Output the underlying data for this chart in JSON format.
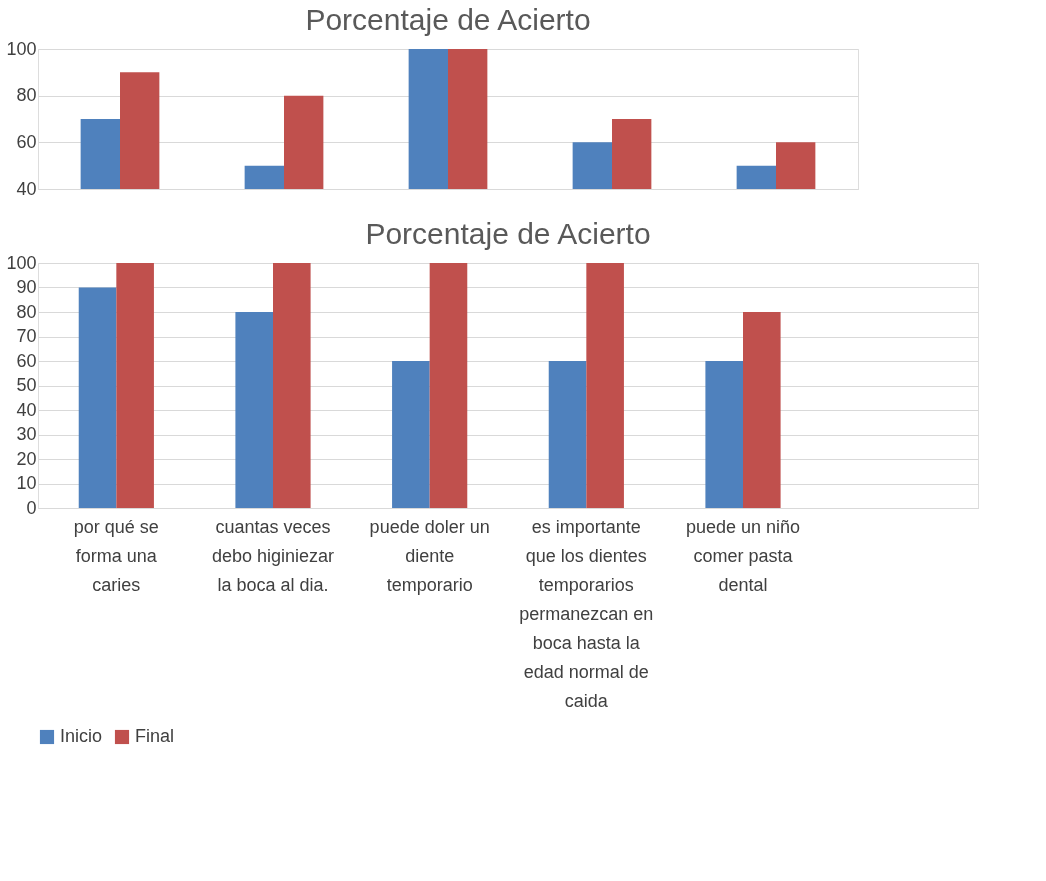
{
  "chart_data": [
    {
      "type": "bar",
      "title": "Porcentaje de Acierto",
      "categories": [
        null,
        null,
        null,
        null,
        null
      ],
      "series": [
        {
          "color": "#4f81bd",
          "values": [
            70,
            50,
            100,
            60,
            50
          ]
        },
        {
          "color": "#c0504d",
          "values": [
            90,
            80,
            100,
            70,
            60
          ]
        }
      ],
      "ylim": [
        40,
        100
      ],
      "yticks": [
        40,
        60,
        80,
        100
      ],
      "grid": "y",
      "tick_labels": "y"
    },
    {
      "type": "bar",
      "title": "Porcentaje de Acierto",
      "categories": [
        "por qué se forma una caries",
        "cuantas veces debo higiniezar la boca al dia.",
        "puede doler un diente temporario",
        "es importante que los dientes temporarios permanezcan en boca hasta la edad normal de caida",
        "puede un niño comer pasta dental"
      ],
      "series": [
        {
          "name": "Inicio",
          "color": "#4f81bd",
          "values": [
            90,
            80,
            60,
            60,
            60
          ]
        },
        {
          "name": "Final",
          "color": "#c0504d",
          "values": [
            100,
            100,
            100,
            100,
            80
          ]
        }
      ],
      "ylim": [
        0,
        100
      ],
      "yticks": [
        0,
        10,
        20,
        30,
        40,
        50,
        60,
        70,
        80,
        90,
        100
      ],
      "grid": "y",
      "legend": "bottom"
    }
  ]
}
